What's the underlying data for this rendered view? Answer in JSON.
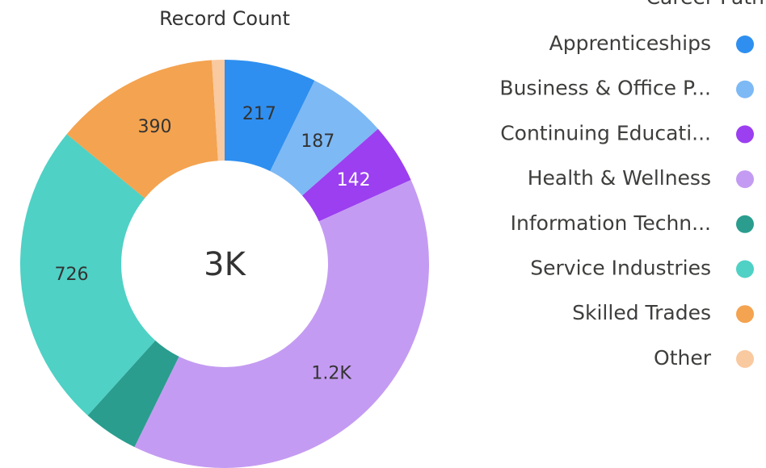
{
  "chart_data": {
    "type": "pie",
    "title": "Record Count",
    "legend_title": "Career Path",
    "center_label": "3K",
    "categories": [
      "Apprenticeships",
      "Business & Office P...",
      "Continuing Educati...",
      "Health & Wellness",
      "Information Techn...",
      "Service Industries",
      "Skilled Trades",
      "Other"
    ],
    "values": [
      217,
      187,
      142,
      1167,
      132,
      726,
      390,
      30
    ],
    "value_labels": [
      "217",
      "187",
      "142",
      "1.2K",
      null,
      "726",
      "390",
      null
    ],
    "colors": [
      "#2e8ff0",
      "#7db9f5",
      "#9b3ff0",
      "#c49bf2",
      "#2a9d8f",
      "#4fd1c5",
      "#f4a350",
      "#f9c9a0"
    ],
    "legend": "right"
  }
}
